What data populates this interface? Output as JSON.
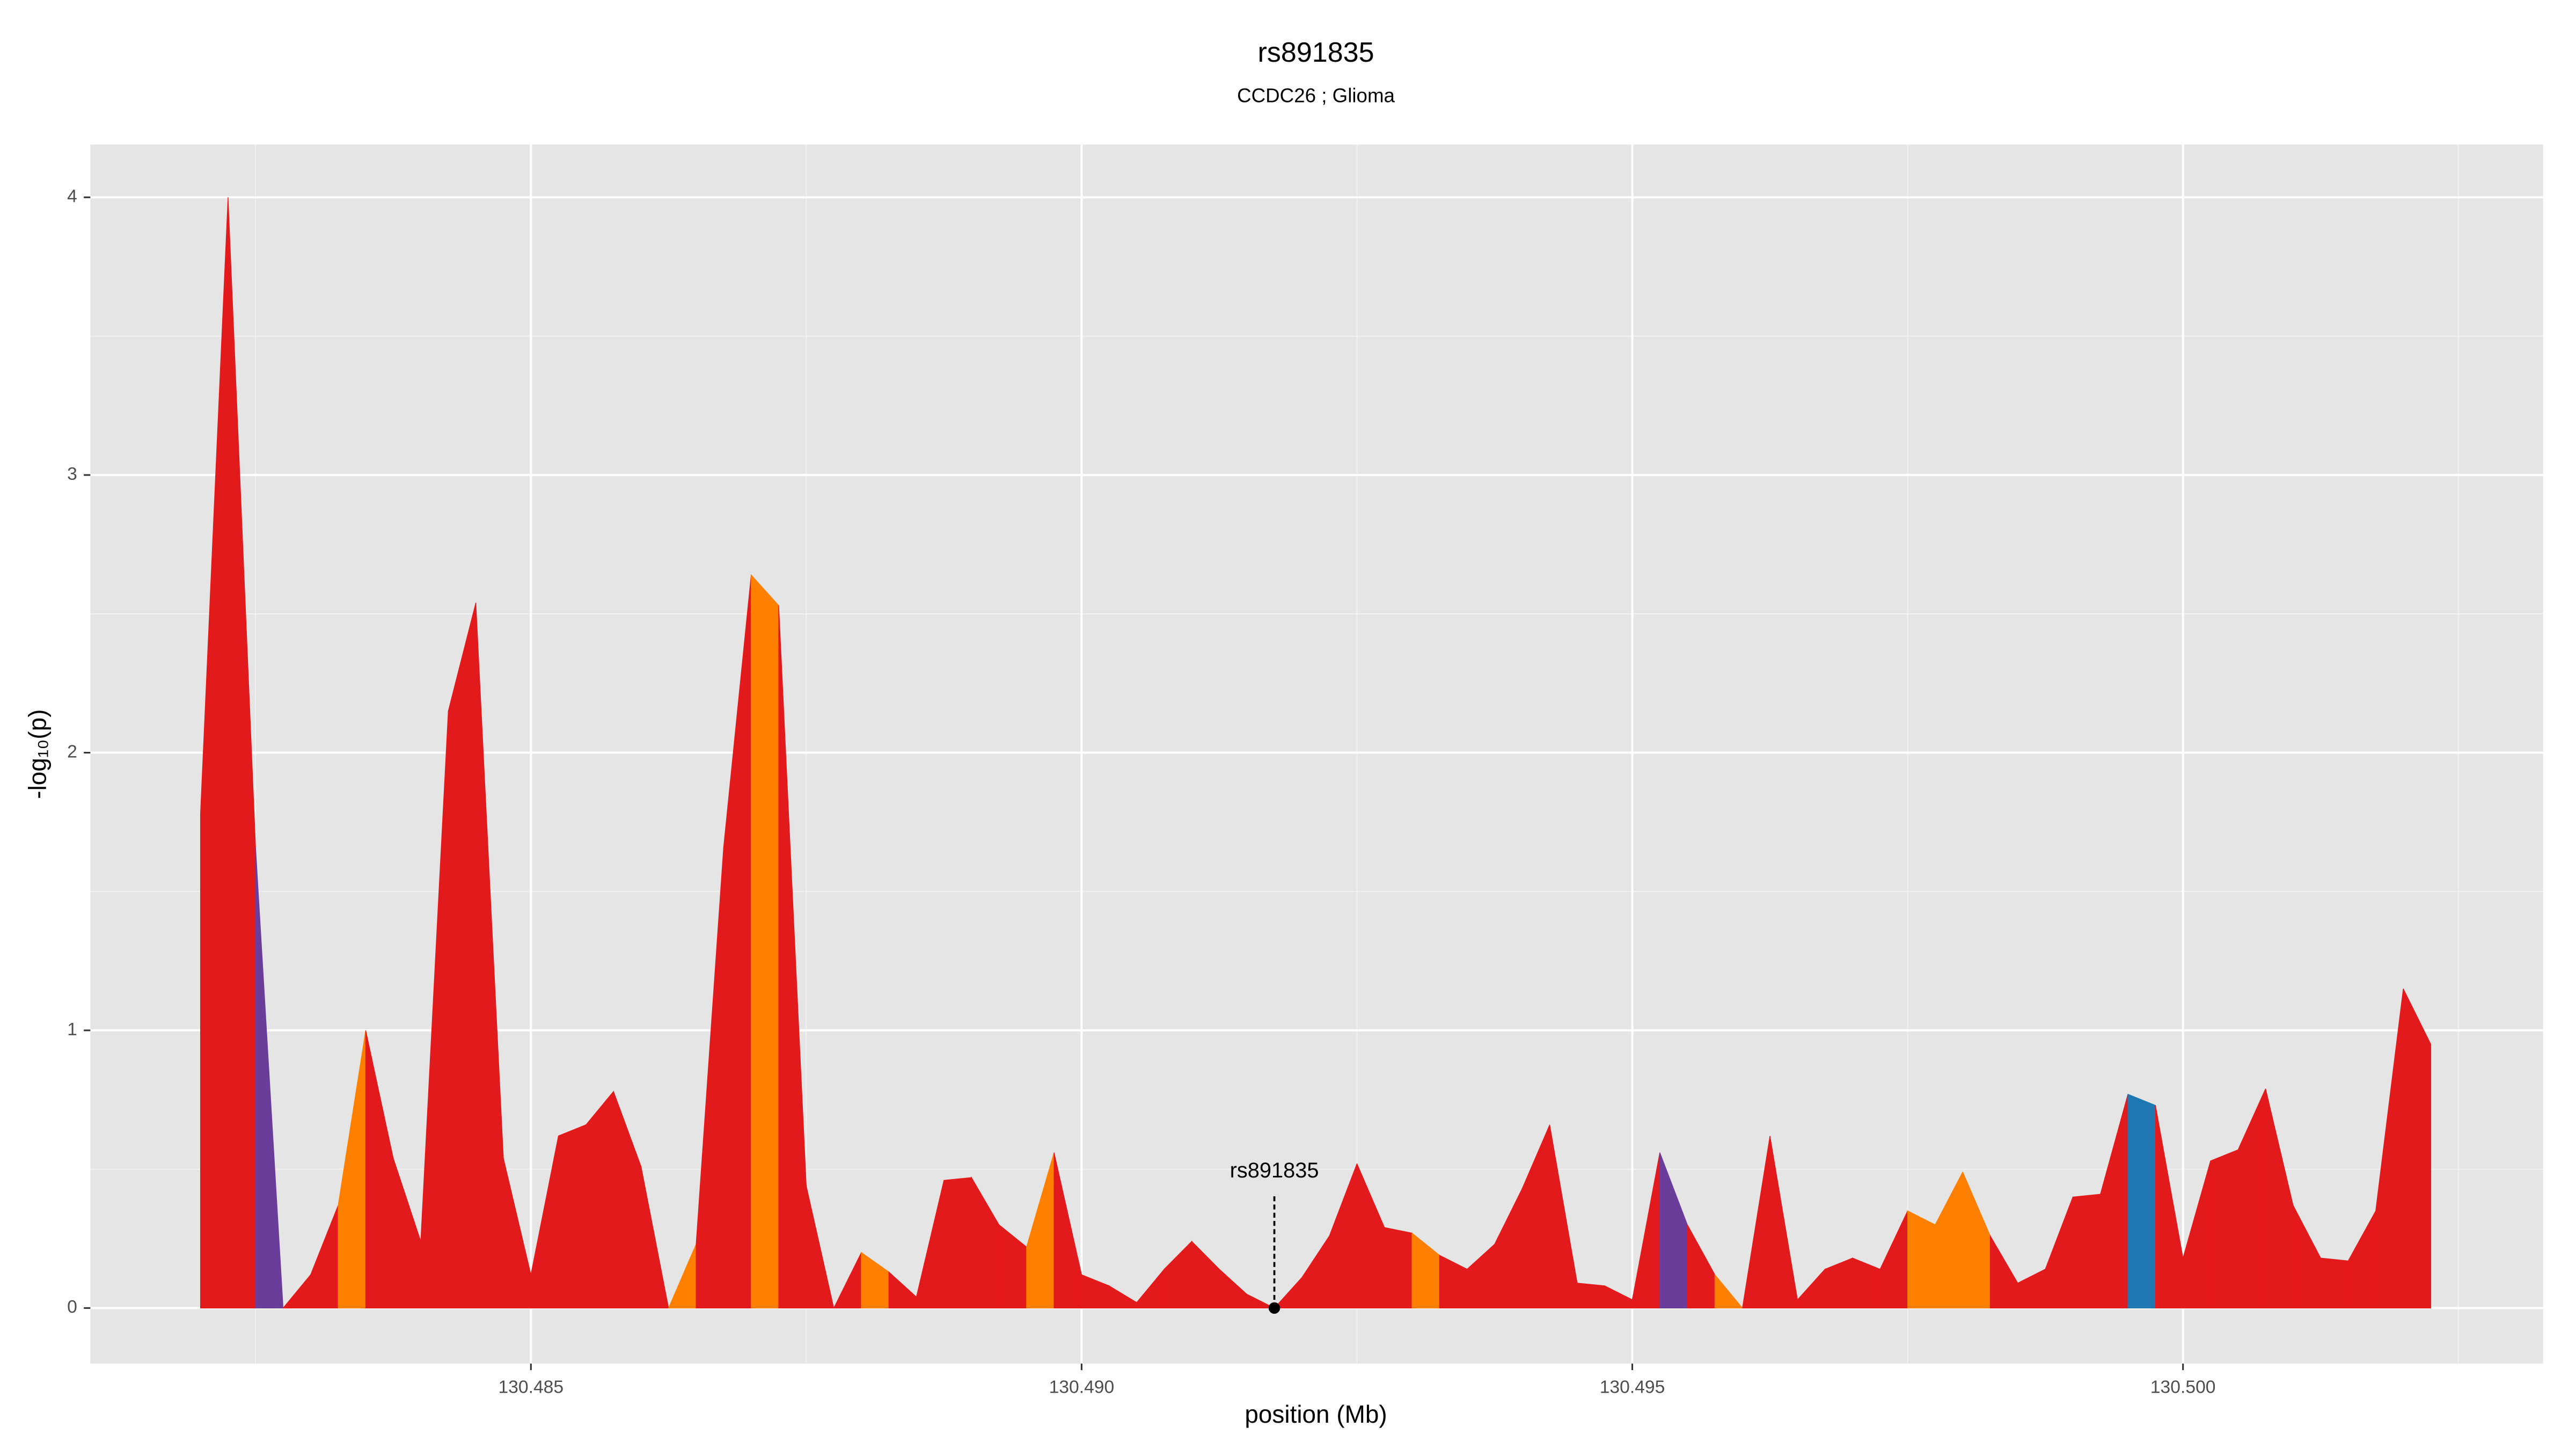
{
  "chart_data": {
    "type": "area",
    "title": "rs891835",
    "subtitle": "CCDC26 ; Glioma",
    "x_label": "position (Mb)",
    "y_label": "-log₁₀(p)",
    "x": [
      130.482,
      130.48225,
      130.4825,
      130.48275,
      130.483,
      130.48325,
      130.4835,
      130.48375,
      130.484,
      130.48425,
      130.4845,
      130.48475,
      130.485,
      130.48525,
      130.4855,
      130.48575,
      130.486,
      130.48625,
      130.4865,
      130.48675,
      130.487,
      130.48725,
      130.4875,
      130.48775,
      130.488,
      130.48825,
      130.4885,
      130.48875,
      130.489,
      130.48925,
      130.4895,
      130.48975,
      130.49,
      130.49025,
      130.4905,
      130.49075,
      130.491,
      130.49125,
      130.4915,
      130.49175,
      130.492,
      130.49225,
      130.4925,
      130.49275,
      130.493,
      130.49325,
      130.4935,
      130.49375,
      130.494,
      130.49425,
      130.4945,
      130.49475,
      130.495,
      130.49525,
      130.4955,
      130.49575,
      130.496,
      130.49625,
      130.4965,
      130.49675,
      130.497,
      130.49725,
      130.4975,
      130.49775,
      130.498,
      130.49825,
      130.4985,
      130.49875,
      130.499,
      130.49925,
      130.4995,
      130.49975,
      130.5,
      130.50025,
      130.5005,
      130.50075,
      130.501,
      130.50125,
      130.5015,
      130.50175,
      130.502,
      130.50225
    ],
    "values": [
      1.78,
      4.0,
      1.66,
      0.0,
      0.12,
      0.37,
      1.0,
      0.54,
      0.24,
      2.15,
      2.54,
      0.54,
      0.12,
      0.62,
      0.66,
      0.78,
      0.51,
      0.0,
      0.23,
      1.66,
      2.64,
      2.53,
      0.44,
      0.0,
      0.2,
      0.13,
      0.04,
      0.46,
      0.47,
      0.3,
      0.22,
      0.56,
      0.12,
      0.08,
      0.02,
      0.14,
      0.24,
      0.14,
      0.05,
      0.0,
      0.11,
      0.26,
      0.52,
      0.29,
      0.27,
      0.19,
      0.14,
      0.23,
      0.43,
      0.66,
      0.09,
      0.08,
      0.03,
      0.56,
      0.3,
      0.12,
      0.0,
      0.62,
      0.03,
      0.14,
      0.18,
      0.14,
      0.35,
      0.3,
      0.49,
      0.26,
      0.09,
      0.14,
      0.4,
      0.41,
      0.77,
      0.73,
      0.18,
      0.53,
      0.57,
      0.79,
      0.37,
      0.18,
      0.17,
      0.35,
      1.15,
      0.95
    ],
    "segment_colors": [
      "#e31a1c",
      "#e31a1c",
      "#6a3d9a",
      "#e31a1c",
      "#e31a1c",
      "#ff7f00",
      "#e31a1c",
      "#e31a1c",
      "#e31a1c",
      "#e31a1c",
      "#e31a1c",
      "#e31a1c",
      "#e31a1c",
      "#e31a1c",
      "#e31a1c",
      "#e31a1c",
      "#e31a1c",
      "#ff7f00",
      "#e31a1c",
      "#e31a1c",
      "#ff7f00",
      "#e31a1c",
      "#e31a1c",
      "#e31a1c",
      "#ff7f00",
      "#e31a1c",
      "#e31a1c",
      "#e31a1c",
      "#e31a1c",
      "#e31a1c",
      "#ff7f00",
      "#e31a1c",
      "#e31a1c",
      "#e31a1c",
      "#e31a1c",
      "#e31a1c",
      "#e31a1c",
      "#e31a1c",
      "#e31a1c",
      "#e31a1c",
      "#e31a1c",
      "#e31a1c",
      "#e31a1c",
      "#e31a1c",
      "#ff7f00",
      "#e31a1c",
      "#e31a1c",
      "#e31a1c",
      "#e31a1c",
      "#e31a1c",
      "#e31a1c",
      "#e31a1c",
      "#e31a1c",
      "#6a3d9a",
      "#e31a1c",
      "#ff7f00",
      "#e31a1c",
      "#e31a1c",
      "#e31a1c",
      "#e31a1c",
      "#e31a1c",
      "#e31a1c",
      "#ff7f00",
      "#ff7f00",
      "#ff7f00",
      "#e31a1c",
      "#e31a1c",
      "#e31a1c",
      "#e31a1c",
      "#e31a1c",
      "#1f78b4",
      "#e31a1c",
      "#e31a1c",
      "#e31a1c",
      "#e31a1c",
      "#e31a1c",
      "#e31a1c",
      "#e31a1c",
      "#e31a1c",
      "#e31a1c",
      "#e31a1c"
    ],
    "annotation": {
      "text": "rs891835",
      "x": 130.49175,
      "y": 0
    },
    "xlim": [
      130.481,
      130.50327
    ],
    "ylim": [
      -0.2,
      4.19
    ],
    "xticks": [
      130.485,
      {
        "value": 130.49,
        "label": "130.490"
      },
      130.495,
      {
        "value": 130.5,
        "label": "130.500"
      }
    ],
    "yticks": [
      0,
      1,
      2,
      3,
      4
    ],
    "grid": true
  }
}
